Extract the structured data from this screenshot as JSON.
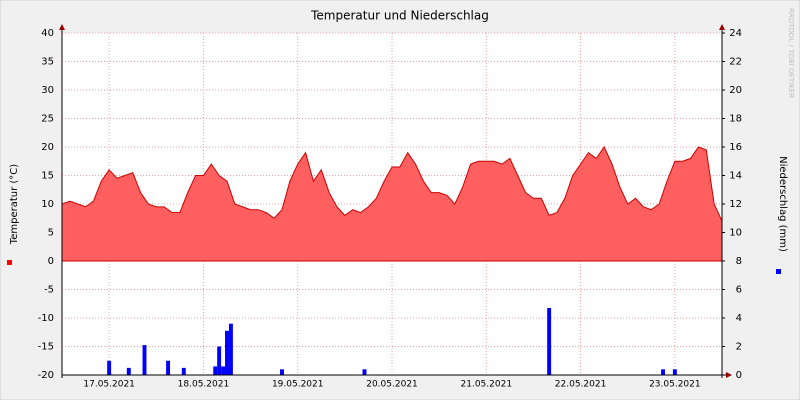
{
  "chart_data": {
    "type": "area_bar",
    "title": "Temperatur und Niederschlag",
    "y_label": "Temperatur (°C)",
    "y2_label": "Niederschlag (mm)",
    "watermark": "RRDTOOL / TOBI OETIKER",
    "xlim": [
      0,
      168
    ],
    "xticks": [
      {
        "value": 12,
        "label": "17.05.2021"
      },
      {
        "value": 36,
        "label": "18.05.2021"
      },
      {
        "value": 60,
        "label": "19.05.2021"
      },
      {
        "value": 84,
        "label": "20.05.2021"
      },
      {
        "value": 108,
        "label": "21.05.2021"
      },
      {
        "value": 132,
        "label": "22.05.2021"
      },
      {
        "value": 156,
        "label": "23.05.2021"
      }
    ],
    "ylim": [
      -20,
      40
    ],
    "yticks": [
      -20,
      -15,
      -10,
      -5,
      0,
      5,
      10,
      15,
      20,
      25,
      30,
      35,
      40
    ],
    "y2lim": [
      0,
      24
    ],
    "y2ticks": [
      0,
      2,
      4,
      6,
      8,
      10,
      12,
      14,
      16,
      18,
      20,
      22,
      24
    ],
    "grid": true,
    "series": [
      {
        "type": "area",
        "color": "#ff5f5f",
        "x": [
          0,
          2,
          4,
          6,
          8,
          10,
          12,
          14,
          16,
          18,
          20,
          22,
          24,
          26,
          28,
          30,
          32,
          34,
          36,
          38,
          40,
          42,
          44,
          46,
          48,
          50,
          52,
          54,
          56,
          58,
          60,
          62,
          64,
          66,
          68,
          70,
          72,
          74,
          76,
          78,
          80,
          82,
          84,
          86,
          88,
          90,
          92,
          94,
          96,
          98,
          100,
          102,
          104,
          106,
          108,
          110,
          112,
          114,
          116,
          118,
          120,
          122,
          124,
          126,
          128,
          130,
          132,
          134,
          136,
          138,
          140,
          142,
          144,
          146,
          148,
          150,
          152,
          154,
          156,
          158,
          160,
          162,
          164,
          166,
          168
        ],
        "values": [
          10,
          10.5,
          10,
          9.5,
          10.5,
          14,
          16,
          14.5,
          15,
          15.5,
          12,
          10,
          9.5,
          9.5,
          8.5,
          8.5,
          12,
          15,
          15,
          17,
          15,
          14,
          10,
          9.5,
          9,
          9,
          8.5,
          7.5,
          9,
          14,
          17,
          19,
          14,
          16,
          12,
          9.5,
          8,
          9,
          8.5,
          9.5,
          11,
          14,
          16.5,
          16.5,
          19,
          17,
          14,
          12,
          12,
          11.5,
          10,
          13,
          17,
          17.5,
          17.5,
          17.5,
          17,
          18,
          15,
          12,
          11,
          11,
          8,
          8.5,
          11,
          15,
          17,
          19,
          18,
          20,
          17,
          13,
          10,
          11,
          9.5,
          9,
          10,
          14,
          17.5,
          17.5,
          18,
          20,
          19.5,
          10,
          7
        ]
      },
      {
        "type": "bar",
        "color": "#0000ff",
        "axis": "y2",
        "x": [
          12,
          17,
          21,
          27,
          31,
          39,
          40,
          41,
          42,
          43,
          56,
          77,
          124,
          153,
          156
        ],
        "values": [
          1,
          0.5,
          2.1,
          1,
          0.5,
          0.6,
          2,
          0.6,
          3.1,
          3.6,
          0.4,
          0.4,
          4.7,
          0.4,
          0.4
        ]
      }
    ]
  }
}
